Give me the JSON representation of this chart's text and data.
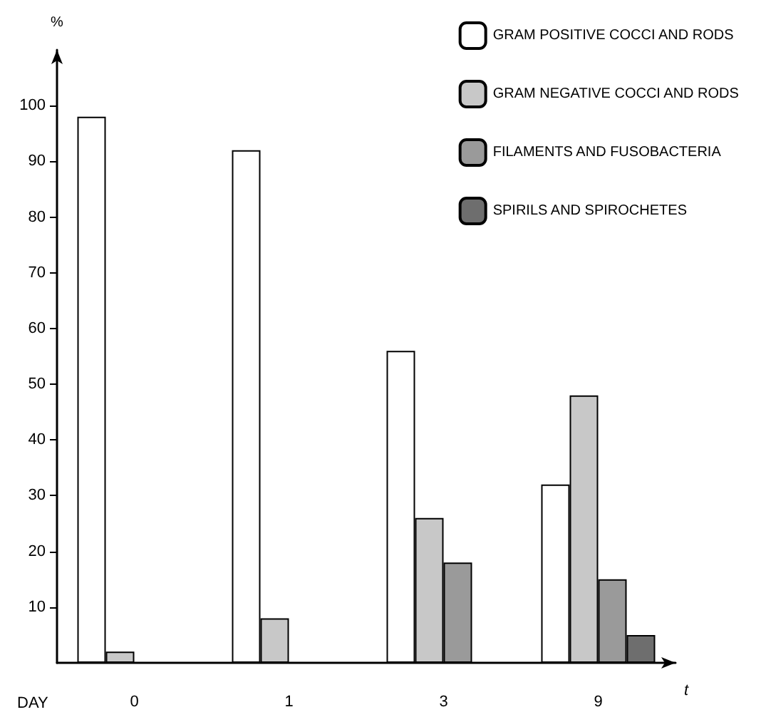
{
  "chart_data": {
    "type": "bar",
    "xlabel": "t",
    "ylabel": "%",
    "annotations": [
      "DAY"
    ],
    "categories": [
      "0",
      "1",
      "3",
      "9"
    ],
    "series": [
      {
        "name": "GRAM POSITIVE COCCI AND RODS",
        "color": "#ffffff",
        "values": [
          98,
          92,
          56,
          32
        ]
      },
      {
        "name": "GRAM NEGATIVE COCCI AND RODS",
        "color": "#c8c8c8",
        "values": [
          2,
          8,
          26,
          48
        ]
      },
      {
        "name": "FILAMENTS AND FUSOBACTERIA",
        "color": "#9a9a9a",
        "values": [
          null,
          null,
          18,
          15
        ]
      },
      {
        "name": "SPIRILS AND SPIROCHETES",
        "color": "#6e6e6e",
        "values": [
          null,
          null,
          null,
          5
        ]
      }
    ],
    "ylim": [
      0,
      110
    ],
    "yticks": [
      10,
      20,
      30,
      40,
      50,
      60,
      70,
      80,
      90,
      100
    ],
    "grid": false,
    "legend": "top right"
  }
}
